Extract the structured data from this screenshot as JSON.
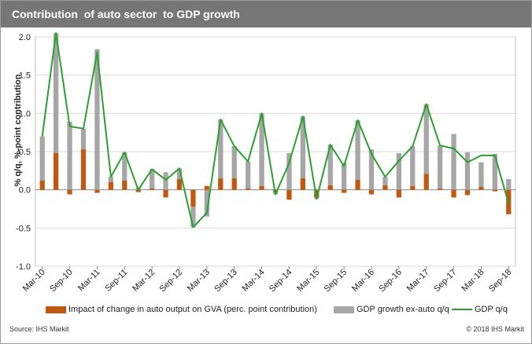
{
  "title": "Contribution  of auto sector  to GDP growth",
  "footer": {
    "source": "Source:  IHS Markit",
    "copyright": "© 2018  IHS Markit"
  },
  "colors": {
    "auto": "#c0580f",
    "exauto": "#a6a6a6",
    "gdp": "#2aa12e",
    "title_bg": "#767676"
  },
  "chart_data": {
    "type": "bar",
    "stacked": true,
    "title": "Contribution  of auto sector  to GDP growth",
    "ylabel": "% q/q, %-point contribution",
    "xlabel": "",
    "ylim": [
      -1.0,
      2.0
    ],
    "yticks": [
      "2.0",
      "1.5",
      "1.0",
      "0.5",
      "0.0",
      "-0.5",
      "-1.0"
    ],
    "grid": true,
    "legend_position": "bottom",
    "tick_labels": [
      "Mar-10",
      "Sep-10",
      "Mar-11",
      "Sep-11",
      "Mar-12",
      "Sep-12",
      "Mar-13",
      "Sep-13",
      "Mar-14",
      "Sep-14",
      "Mar-15",
      "Sep-15",
      "Mar-16",
      "Sep-16",
      "Mar-17",
      "Sep-17",
      "Mar-18",
      "Sep-18"
    ],
    "categories": [
      "Q1-10",
      "Q2-10",
      "Q3-10",
      "Q4-10",
      "Q1-11",
      "Q2-11",
      "Q3-11",
      "Q4-11",
      "Q1-12",
      "Q2-12",
      "Q3-12",
      "Q4-12",
      "Q1-13",
      "Q2-13",
      "Q3-13",
      "Q4-13",
      "Q1-14",
      "Q2-14",
      "Q3-14",
      "Q4-14",
      "Q1-15",
      "Q2-15",
      "Q3-15",
      "Q4-15",
      "Q1-16",
      "Q2-16",
      "Q3-16",
      "Q4-16",
      "Q1-17",
      "Q2-17",
      "Q3-17",
      "Q4-17",
      "Q1-18",
      "Q2-18",
      "Q3-18"
    ],
    "series": [
      {
        "name": "Impact of change in auto output on GVA (perc. point contribution)",
        "kind": "bar",
        "values": [
          0.12,
          0.48,
          -0.06,
          0.53,
          -0.04,
          0.1,
          0.12,
          -0.03,
          0.02,
          -0.1,
          0.14,
          -0.22,
          0.05,
          0.15,
          0.15,
          0.02,
          0.05,
          -0.03,
          -0.13,
          0.15,
          -0.1,
          0.06,
          -0.04,
          0.13,
          -0.06,
          0.06,
          -0.1,
          0.05,
          0.21,
          0.02,
          -0.1,
          -0.07,
          0.04,
          -0.02,
          -0.32
        ]
      },
      {
        "name": "GDP growth ex-auto q/q",
        "kind": "bar",
        "values": [
          0.58,
          1.57,
          0.89,
          0.27,
          1.84,
          0.07,
          0.37,
          0.03,
          0.25,
          0.23,
          0.14,
          -0.27,
          -0.35,
          0.77,
          0.42,
          0.35,
          0.95,
          -0.03,
          0.48,
          0.81,
          -0.02,
          0.53,
          0.35,
          0.78,
          0.53,
          0.11,
          0.48,
          0.52,
          0.91,
          0.56,
          0.73,
          0.49,
          0.32,
          0.47,
          0.14
        ]
      },
      {
        "name": "GDP q/q",
        "kind": "line",
        "values": [
          0.7,
          2.05,
          0.83,
          0.8,
          1.8,
          0.17,
          0.49,
          0.0,
          0.27,
          0.13,
          0.28,
          -0.49,
          -0.3,
          0.92,
          0.57,
          0.37,
          1.0,
          -0.06,
          0.35,
          0.96,
          -0.12,
          0.59,
          0.31,
          0.91,
          0.47,
          0.17,
          0.38,
          0.57,
          1.12,
          0.58,
          0.54,
          0.36,
          0.45,
          0.45,
          -0.18
        ]
      }
    ]
  }
}
